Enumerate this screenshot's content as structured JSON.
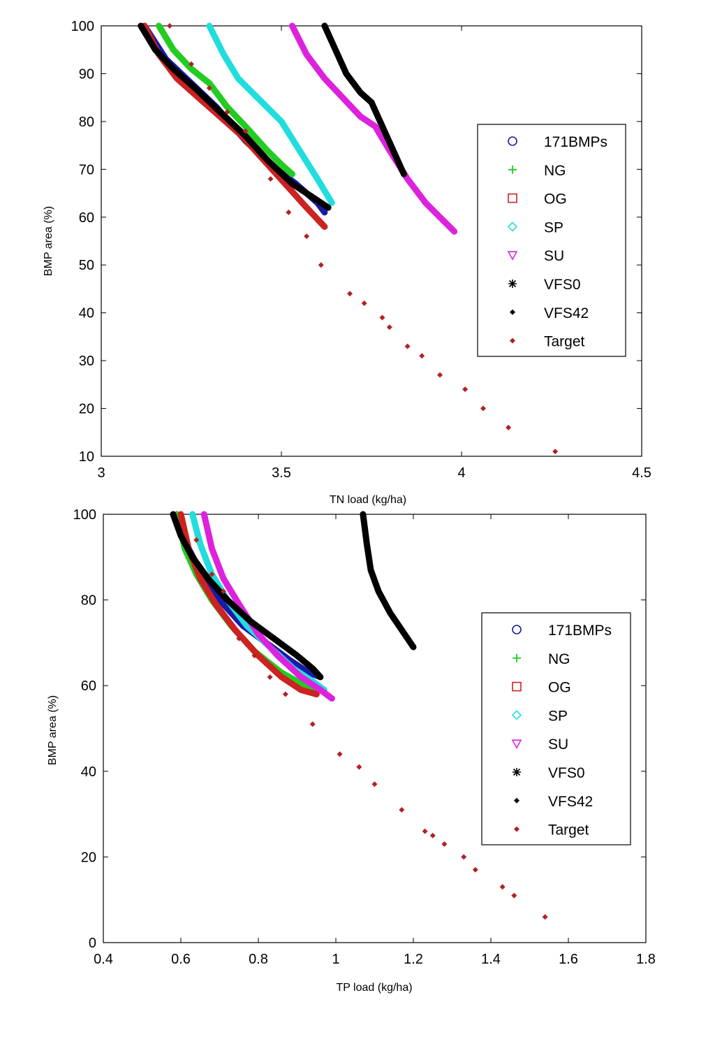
{
  "chart_data": [
    {
      "type": "line",
      "title": "",
      "xlabel": "TN load (kg/ha)",
      "ylabel": "BMP area (%)",
      "xlim": [
        3,
        4.5
      ],
      "ylim": [
        10,
        100
      ],
      "xticks": [
        3,
        3.5,
        4,
        4.5
      ],
      "xtick_labels": [
        "3",
        "3.5",
        "4",
        "4.5"
      ],
      "yticks": [
        10,
        20,
        30,
        40,
        50,
        60,
        70,
        80,
        90,
        100
      ],
      "ytick_labels": [
        "10",
        "20",
        "30",
        "40",
        "50",
        "60",
        "70",
        "80",
        "90",
        "100"
      ],
      "legend_position": "right",
      "legend": [
        {
          "name": "171BMPs",
          "marker": "circle",
          "color": "#1a1aa8"
        },
        {
          "name": "NG",
          "marker": "plus",
          "color": "#22cc22"
        },
        {
          "name": "OG",
          "marker": "square",
          "color": "#cc2222"
        },
        {
          "name": "SP",
          "marker": "diamond",
          "color": "#22dddd"
        },
        {
          "name": "SU",
          "marker": "triangle-down",
          "color": "#dd22dd"
        },
        {
          "name": "VFS0",
          "marker": "asterisk",
          "color": "#000000"
        },
        {
          "name": "VFS42",
          "marker": "dot",
          "color": "#000000"
        },
        {
          "name": "Target",
          "marker": "dot",
          "color": "#b22222"
        }
      ],
      "series": [
        {
          "name": "171BMPs",
          "color": "#1a1aa8",
          "x": [
            3.12,
            3.18,
            3.25,
            3.32,
            3.4,
            3.47,
            3.54,
            3.6,
            3.62
          ],
          "y": [
            100,
            93,
            88,
            83,
            76,
            71,
            67,
            63,
            61
          ]
        },
        {
          "name": "NG",
          "color": "#22cc22",
          "x": [
            3.16,
            3.2,
            3.25,
            3.3,
            3.35,
            3.4,
            3.46,
            3.5,
            3.53
          ],
          "y": [
            100,
            95,
            91,
            88,
            83,
            79,
            74,
            71,
            69
          ]
        },
        {
          "name": "OG",
          "color": "#cc2222",
          "x": [
            3.12,
            3.16,
            3.21,
            3.27,
            3.33,
            3.39,
            3.45,
            3.51,
            3.57,
            3.62
          ],
          "y": [
            100,
            94,
            89,
            85,
            81,
            77,
            72,
            67,
            62,
            58
          ]
        },
        {
          "name": "SP",
          "color": "#22dddd",
          "x": [
            3.3,
            3.34,
            3.38,
            3.42,
            3.46,
            3.5,
            3.55,
            3.6,
            3.64
          ],
          "y": [
            100,
            94,
            89,
            86,
            83,
            80,
            74,
            68,
            63
          ]
        },
        {
          "name": "SU",
          "color": "#dd22dd",
          "x": [
            3.53,
            3.57,
            3.62,
            3.67,
            3.72,
            3.76,
            3.8,
            3.85,
            3.9,
            3.94,
            3.98
          ],
          "y": [
            100,
            94,
            89,
            85,
            81,
            79,
            74,
            68,
            63,
            60,
            57
          ]
        },
        {
          "name": "VFS0",
          "color": "#000000",
          "x": [
            3.62,
            3.65,
            3.68,
            3.72,
            3.75,
            3.78,
            3.81,
            3.84
          ],
          "y": [
            100,
            95,
            90,
            86,
            84,
            79,
            74,
            69
          ]
        },
        {
          "name": "VFS42",
          "color": "#000000",
          "x": [
            3.11,
            3.15,
            3.2,
            3.26,
            3.33,
            3.4,
            3.46,
            3.53,
            3.59,
            3.63
          ],
          "y": [
            100,
            95,
            91,
            87,
            82,
            77,
            72,
            67,
            64,
            62
          ]
        }
      ],
      "target": {
        "name": "Target",
        "color": "#b22222",
        "x": [
          3.19,
          3.25,
          3.3,
          3.35,
          3.4,
          3.47,
          3.52,
          3.57,
          3.61,
          3.69,
          3.73,
          3.78,
          3.8,
          3.85,
          3.89,
          3.94,
          4.01,
          4.06,
          4.13,
          4.26
        ],
        "y": [
          100,
          92,
          87,
          82,
          78,
          68,
          61,
          56,
          50,
          44,
          42,
          39,
          37,
          33,
          31,
          27,
          24,
          20,
          16,
          11
        ]
      }
    },
    {
      "type": "line",
      "title": "",
      "xlabel": "TP load (kg/ha)",
      "ylabel": "BMP area (%)",
      "xlim": [
        0.4,
        1.8
      ],
      "ylim": [
        0,
        100
      ],
      "xticks": [
        0.4,
        0.6,
        0.8,
        1.0,
        1.2,
        1.4,
        1.6,
        1.8
      ],
      "xtick_labels": [
        "0.4",
        "0.6",
        "0.8",
        "1",
        "1.2",
        "1.4",
        "1.6",
        "1.8"
      ],
      "yticks": [
        0,
        20,
        40,
        60,
        80,
        100
      ],
      "ytick_labels": [
        "0",
        "20",
        "40",
        "60",
        "80",
        "100"
      ],
      "legend_position": "right",
      "legend": [
        {
          "name": "171BMPs",
          "marker": "circle",
          "color": "#1a1aa8"
        },
        {
          "name": "NG",
          "marker": "plus",
          "color": "#22cc22"
        },
        {
          "name": "OG",
          "marker": "square",
          "color": "#cc2222"
        },
        {
          "name": "SP",
          "marker": "diamond",
          "color": "#22dddd"
        },
        {
          "name": "SU",
          "marker": "triangle-down",
          "color": "#dd22dd"
        },
        {
          "name": "VFS0",
          "marker": "asterisk",
          "color": "#000000"
        },
        {
          "name": "VFS42",
          "marker": "dot",
          "color": "#000000"
        },
        {
          "name": "Target",
          "marker": "dot",
          "color": "#b22222"
        }
      ],
      "series": [
        {
          "name": "171BMPs",
          "color": "#1a1aa8",
          "x": [
            0.59,
            0.62,
            0.66,
            0.71,
            0.76,
            0.82,
            0.88,
            0.93,
            0.96
          ],
          "y": [
            100,
            92,
            85,
            79,
            74,
            70,
            66,
            63,
            62
          ]
        },
        {
          "name": "NG",
          "color": "#22cc22",
          "x": [
            0.59,
            0.61,
            0.64,
            0.68,
            0.73,
            0.79,
            0.86,
            0.92,
            0.95
          ],
          "y": [
            100,
            92,
            86,
            80,
            74,
            68,
            63,
            60,
            58
          ]
        },
        {
          "name": "OG",
          "color": "#cc2222",
          "x": [
            0.6,
            0.62,
            0.65,
            0.69,
            0.74,
            0.8,
            0.86,
            0.91,
            0.95
          ],
          "y": [
            100,
            92,
            85,
            79,
            73,
            67,
            62,
            59,
            58
          ]
        },
        {
          "name": "SP",
          "color": "#22dddd",
          "x": [
            0.63,
            0.65,
            0.68,
            0.72,
            0.77,
            0.83,
            0.89,
            0.94,
            0.97
          ],
          "y": [
            100,
            93,
            86,
            80,
            74,
            69,
            64,
            61,
            59
          ]
        },
        {
          "name": "SU",
          "color": "#dd22dd",
          "x": [
            0.66,
            0.68,
            0.71,
            0.75,
            0.8,
            0.85,
            0.91,
            0.96,
            0.99
          ],
          "y": [
            100,
            92,
            85,
            79,
            72,
            67,
            62,
            59,
            57
          ]
        },
        {
          "name": "VFS0",
          "color": "#000000",
          "x": [
            1.07,
            1.08,
            1.09,
            1.11,
            1.14,
            1.17,
            1.2
          ],
          "y": [
            100,
            93,
            87,
            82,
            77,
            73,
            69
          ]
        },
        {
          "name": "VFS42",
          "color": "#000000",
          "x": [
            0.58,
            0.6,
            0.63,
            0.67,
            0.72,
            0.78,
            0.84,
            0.9,
            0.94,
            0.96
          ],
          "y": [
            100,
            95,
            90,
            85,
            80,
            75,
            71,
            67,
            64,
            62
          ]
        }
      ],
      "target": {
        "name": "Target",
        "color": "#b22222",
        "x": [
          0.64,
          0.68,
          0.71,
          0.75,
          0.79,
          0.83,
          0.87,
          0.94,
          1.01,
          1.06,
          1.1,
          1.17,
          1.23,
          1.25,
          1.28,
          1.33,
          1.36,
          1.43,
          1.46,
          1.54
        ],
        "y": [
          94,
          86,
          82,
          71,
          67,
          62,
          58,
          51,
          44,
          41,
          37,
          31,
          26,
          25,
          23,
          20,
          17,
          13,
          11,
          6
        ]
      }
    }
  ]
}
